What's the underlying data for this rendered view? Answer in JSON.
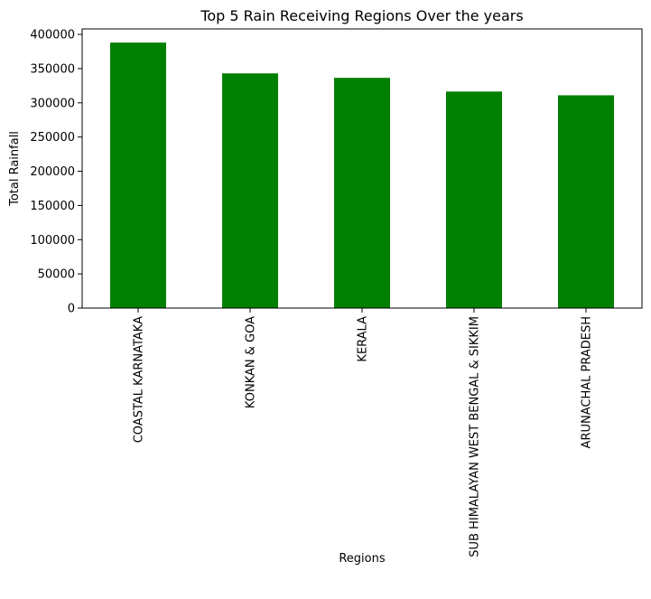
{
  "chart_data": {
    "type": "bar",
    "title": "Top 5 Rain Receiving Regions Over the years",
    "xlabel": "Regions",
    "ylabel": "Total Rainfall",
    "categories": [
      "COASTAL KARNATAKA",
      "KONKAN & GOA",
      "KERALA",
      "SUB HIMALAYAN WEST BENGAL & SIKKIM",
      "ARUNACHAL PRADESH"
    ],
    "values": [
      388000,
      343000,
      336500,
      316500,
      311000
    ],
    "ylim": [
      0,
      408000
    ],
    "yticks": [
      0,
      50000,
      100000,
      150000,
      200000,
      250000,
      300000,
      350000,
      400000
    ],
    "bar_color": "#008000",
    "grid": false,
    "legend": "none"
  }
}
